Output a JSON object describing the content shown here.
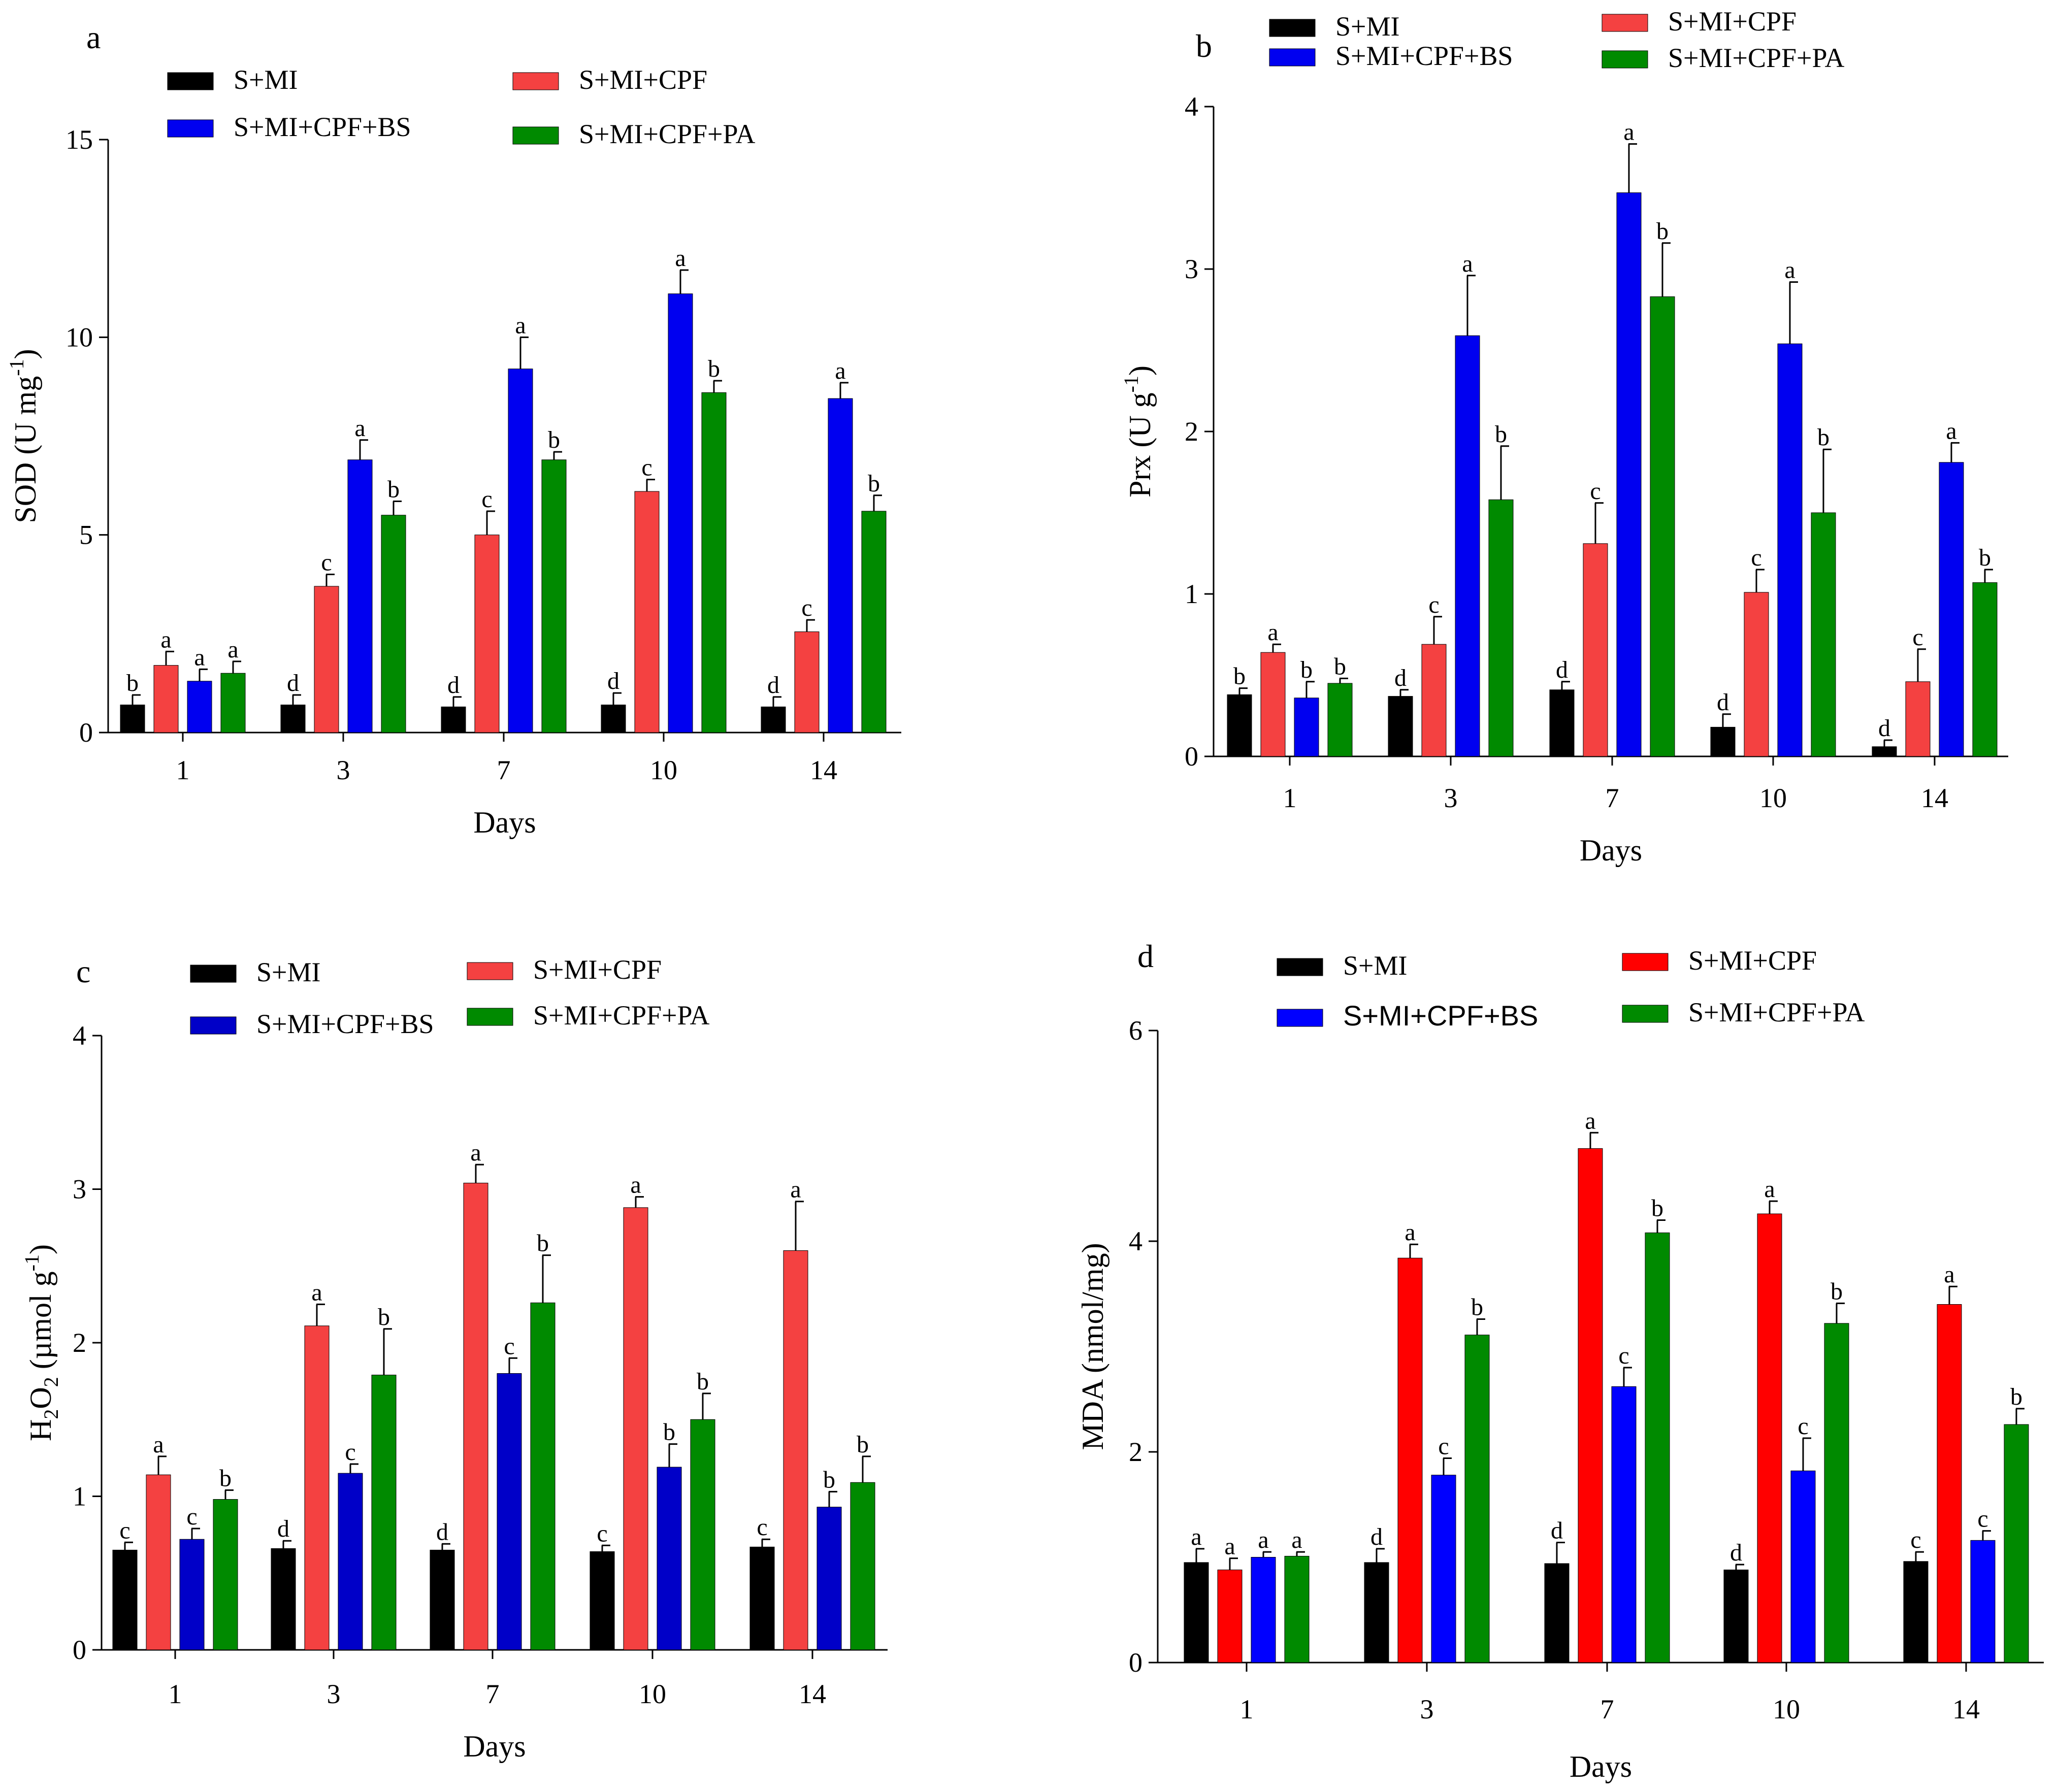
{
  "x_axis_label": "Days",
  "categories": [
    "1",
    "3",
    "7",
    "10",
    "14"
  ],
  "chart_data": [
    {
      "type": "bar",
      "panel": "a",
      "ylabel": "SOD (U mg-1)",
      "ylabel_parts": {
        "text": "SOD (U mg",
        "superscript": "-1",
        "suffix": ")"
      },
      "xlabel": "Days",
      "ylim": [
        0,
        15
      ],
      "yticks": [
        0,
        5,
        10,
        15
      ],
      "categories": [
        "1",
        "3",
        "7",
        "10",
        "14"
      ],
      "series": [
        {
          "name": "S+MI",
          "color": "#000000",
          "values": [
            0.7,
            0.7,
            0.65,
            0.7,
            0.65
          ],
          "errors": [
            0.25,
            0.25,
            0.25,
            0.3,
            0.25
          ],
          "letters": [
            "b",
            "d",
            "d",
            "d",
            "d"
          ]
        },
        {
          "name": "S+MI+CPF",
          "color": "#F44141",
          "values": [
            1.7,
            3.7,
            5.0,
            6.1,
            2.55
          ],
          "errors": [
            0.35,
            0.3,
            0.6,
            0.3,
            0.3
          ],
          "letters": [
            "a",
            "c",
            "c",
            "c",
            "c"
          ]
        },
        {
          "name": "S+MI+CPF+BS",
          "color": "#0000F0",
          "values": [
            1.3,
            6.9,
            9.2,
            11.1,
            8.45
          ],
          "errors": [
            0.3,
            0.5,
            0.8,
            0.6,
            0.4
          ],
          "letters": [
            "a",
            "a",
            "a",
            "a",
            "a"
          ]
        },
        {
          "name": "S+MI+CPF+PA",
          "color": "#008A00",
          "values": [
            1.5,
            5.5,
            6.9,
            8.6,
            5.6
          ],
          "errors": [
            0.3,
            0.35,
            0.2,
            0.3,
            0.4
          ],
          "letters": [
            "a",
            "b",
            "b",
            "b",
            "b"
          ]
        }
      ]
    },
    {
      "type": "bar",
      "panel": "b",
      "ylabel": "Prx (U g-1)",
      "ylabel_parts": {
        "text": "Prx (U g",
        "superscript": "-1",
        "suffix": ")"
      },
      "xlabel": "Days",
      "ylim": [
        0,
        4
      ],
      "yticks": [
        0,
        1,
        2,
        3,
        4
      ],
      "categories": [
        "1",
        "3",
        "7",
        "10",
        "14"
      ],
      "series": [
        {
          "name": "S+MI",
          "color": "#000000",
          "values": [
            0.38,
            0.37,
            0.41,
            0.18,
            0.06
          ],
          "errors": [
            0.04,
            0.04,
            0.05,
            0.08,
            0.04
          ],
          "letters": [
            "b",
            "d",
            "d",
            "d",
            "d"
          ]
        },
        {
          "name": "S+MI+CPF",
          "color": "#F44141",
          "values": [
            0.64,
            0.69,
            1.31,
            1.01,
            0.46
          ],
          "errors": [
            0.05,
            0.17,
            0.25,
            0.14,
            0.2
          ],
          "letters": [
            "a",
            "c",
            "c",
            "c",
            "c"
          ]
        },
        {
          "name": "S+MI+CPF+BS",
          "color": "#0000F0",
          "values": [
            0.36,
            2.59,
            3.47,
            2.54,
            1.81
          ],
          "errors": [
            0.1,
            0.37,
            0.3,
            0.38,
            0.12
          ],
          "letters": [
            "b",
            "a",
            "a",
            "a",
            "a"
          ]
        },
        {
          "name": "S+MI+CPF+PA",
          "color": "#008A00",
          "values": [
            0.45,
            1.58,
            2.83,
            1.5,
            1.07
          ],
          "errors": [
            0.03,
            0.33,
            0.33,
            0.39,
            0.08
          ],
          "letters": [
            "b",
            "b",
            "b",
            "b",
            "b"
          ]
        }
      ]
    },
    {
      "type": "bar",
      "panel": "c",
      "ylabel": "H2O2 (µmol g-1)",
      "ylabel_parts": {
        "text": "H",
        "sub1": "2",
        "text2": "O",
        "sub2": "2",
        "text3": " (µmol g",
        "superscript": "-1",
        "suffix": ")"
      },
      "xlabel": "Days",
      "ylim": [
        0,
        4
      ],
      "yticks": [
        0,
        1,
        2,
        3,
        4
      ],
      "categories": [
        "1",
        "3",
        "7",
        "10",
        "14"
      ],
      "series": [
        {
          "name": "S+MI",
          "color": "#000000",
          "values": [
            0.65,
            0.66,
            0.65,
            0.64,
            0.67
          ],
          "errors": [
            0.05,
            0.05,
            0.04,
            0.04,
            0.05
          ],
          "letters": [
            "c",
            "d",
            "d",
            "c",
            "c"
          ]
        },
        {
          "name": "S+MI+CPF",
          "color": "#F44141",
          "values": [
            1.14,
            2.11,
            3.04,
            2.88,
            2.6
          ],
          "errors": [
            0.12,
            0.14,
            0.12,
            0.07,
            0.32
          ],
          "letters": [
            "a",
            "a",
            "a",
            "a",
            "a"
          ]
        },
        {
          "name": "S+MI+CPF+BS",
          "color": "#0000C8",
          "values": [
            0.72,
            1.15,
            1.8,
            1.19,
            0.93
          ],
          "errors": [
            0.07,
            0.06,
            0.1,
            0.15,
            0.1
          ],
          "letters": [
            "c",
            "c",
            "c",
            "b",
            "b"
          ]
        },
        {
          "name": "S+MI+CPF+PA",
          "color": "#008A00",
          "values": [
            0.98,
            1.79,
            2.26,
            1.5,
            1.09
          ],
          "errors": [
            0.06,
            0.3,
            0.31,
            0.17,
            0.17
          ],
          "letters": [
            "b",
            "b",
            "b",
            "b",
            "b"
          ]
        }
      ]
    },
    {
      "type": "bar",
      "panel": "d",
      "ylabel": "MDA (nmol/mg)",
      "ylabel_parts": {
        "text": "MDA (nmol/mg)"
      },
      "xlabel": "Days",
      "ylim": [
        0,
        6
      ],
      "yticks": [
        0,
        2,
        4,
        6
      ],
      "categories": [
        "1",
        "3",
        "7",
        "10",
        "14"
      ],
      "series": [
        {
          "name": "S+MI",
          "color": "#000000",
          "values": [
            0.95,
            0.95,
            0.94,
            0.88,
            0.96
          ],
          "errors": [
            0.13,
            0.13,
            0.2,
            0.05,
            0.09
          ],
          "letters": [
            "a",
            "d",
            "d",
            "d",
            "c"
          ]
        },
        {
          "name": "S+MI+CPF",
          "color": "#FF0000",
          "values": [
            0.88,
            3.84,
            4.88,
            4.26,
            3.4
          ],
          "errors": [
            0.11,
            0.13,
            0.15,
            0.12,
            0.17
          ],
          "letters": [
            "a",
            "a",
            "a",
            "a",
            "a"
          ]
        },
        {
          "name": "S+MI+CPF+BS",
          "color": "#0000FF",
          "values": [
            1.0,
            1.78,
            2.62,
            1.82,
            1.16
          ],
          "errors": [
            0.05,
            0.16,
            0.18,
            0.31,
            0.09
          ],
          "letters": [
            "a",
            "c",
            "c",
            "c",
            "c"
          ]
        },
        {
          "name": "S+MI+CPF+PA",
          "color": "#008A00",
          "values": [
            1.01,
            3.11,
            4.08,
            3.22,
            2.26
          ],
          "errors": [
            0.04,
            0.15,
            0.12,
            0.19,
            0.15
          ],
          "letters": [
            "a",
            "b",
            "b",
            "b",
            "b"
          ]
        }
      ]
    }
  ]
}
